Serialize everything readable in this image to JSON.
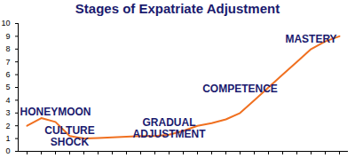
{
  "chart_data": {
    "type": "line",
    "title": "Stages of Expatriate Adjustment",
    "categories": [
      null,
      null,
      null,
      null,
      null,
      null,
      null,
      null,
      null,
      null,
      null,
      null,
      null,
      null,
      null,
      null,
      null,
      null,
      null,
      null,
      null,
      null,
      null
    ],
    "values": [
      2.0,
      2.6,
      2.3,
      1.2,
      1.0,
      1.05,
      1.1,
      1.15,
      1.2,
      1.2,
      1.3,
      1.6,
      2.0,
      2.2,
      2.5,
      3.0,
      4.0,
      5.0,
      6.0,
      7.0,
      8.0,
      8.6,
      9.0
    ],
    "color": "#f07020",
    "ylim": [
      0,
      10
    ],
    "yticks": [
      0,
      1,
      2,
      3,
      4,
      5,
      6,
      7,
      8,
      9,
      10
    ],
    "grid": false,
    "tick_labels": "y",
    "annotations": [
      "HONEYMOON",
      "CULTURE SHOCK",
      "GRADUAL ADJUSTMENT",
      "COMPETENCE",
      "MASTERY"
    ]
  }
}
